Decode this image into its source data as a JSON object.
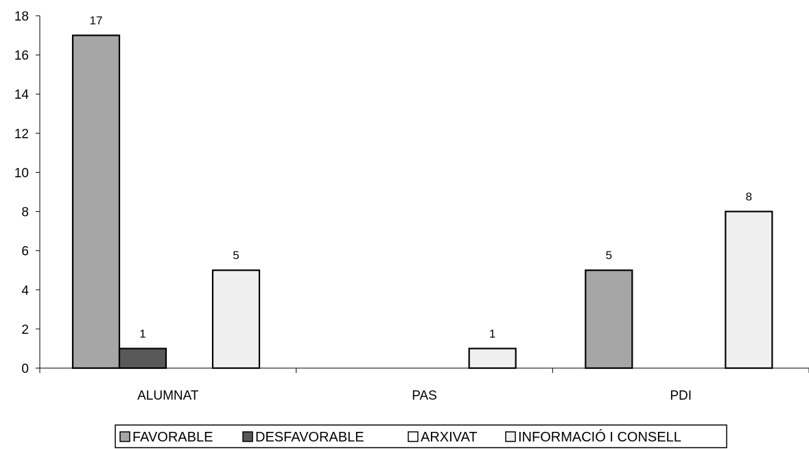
{
  "chart_data": {
    "type": "bar",
    "title": "",
    "xlabel": "",
    "ylabel": "",
    "categories": [
      "ALUMNAT",
      "PAS",
      "PDI"
    ],
    "series": [
      {
        "name": "FAVORABLE",
        "color": "#a6a6a6",
        "values": [
          17,
          0,
          5
        ]
      },
      {
        "name": "DESFAVORABLE",
        "color": "#595959",
        "values": [
          1,
          0,
          0
        ]
      },
      {
        "name": "ARXIVAT",
        "color": "#ffffff",
        "values": [
          0,
          0,
          0
        ]
      },
      {
        "name": "INFORMACIÓ I CONSELL",
        "color": "#efefef",
        "values": [
          5,
          1,
          8
        ]
      }
    ],
    "ylim": [
      0,
      18
    ],
    "yticks": [
      "0",
      "2",
      "4",
      "6",
      "8",
      "10",
      "12",
      "14",
      "16",
      "18"
    ],
    "grid": false,
    "legend_position": "bottom"
  }
}
